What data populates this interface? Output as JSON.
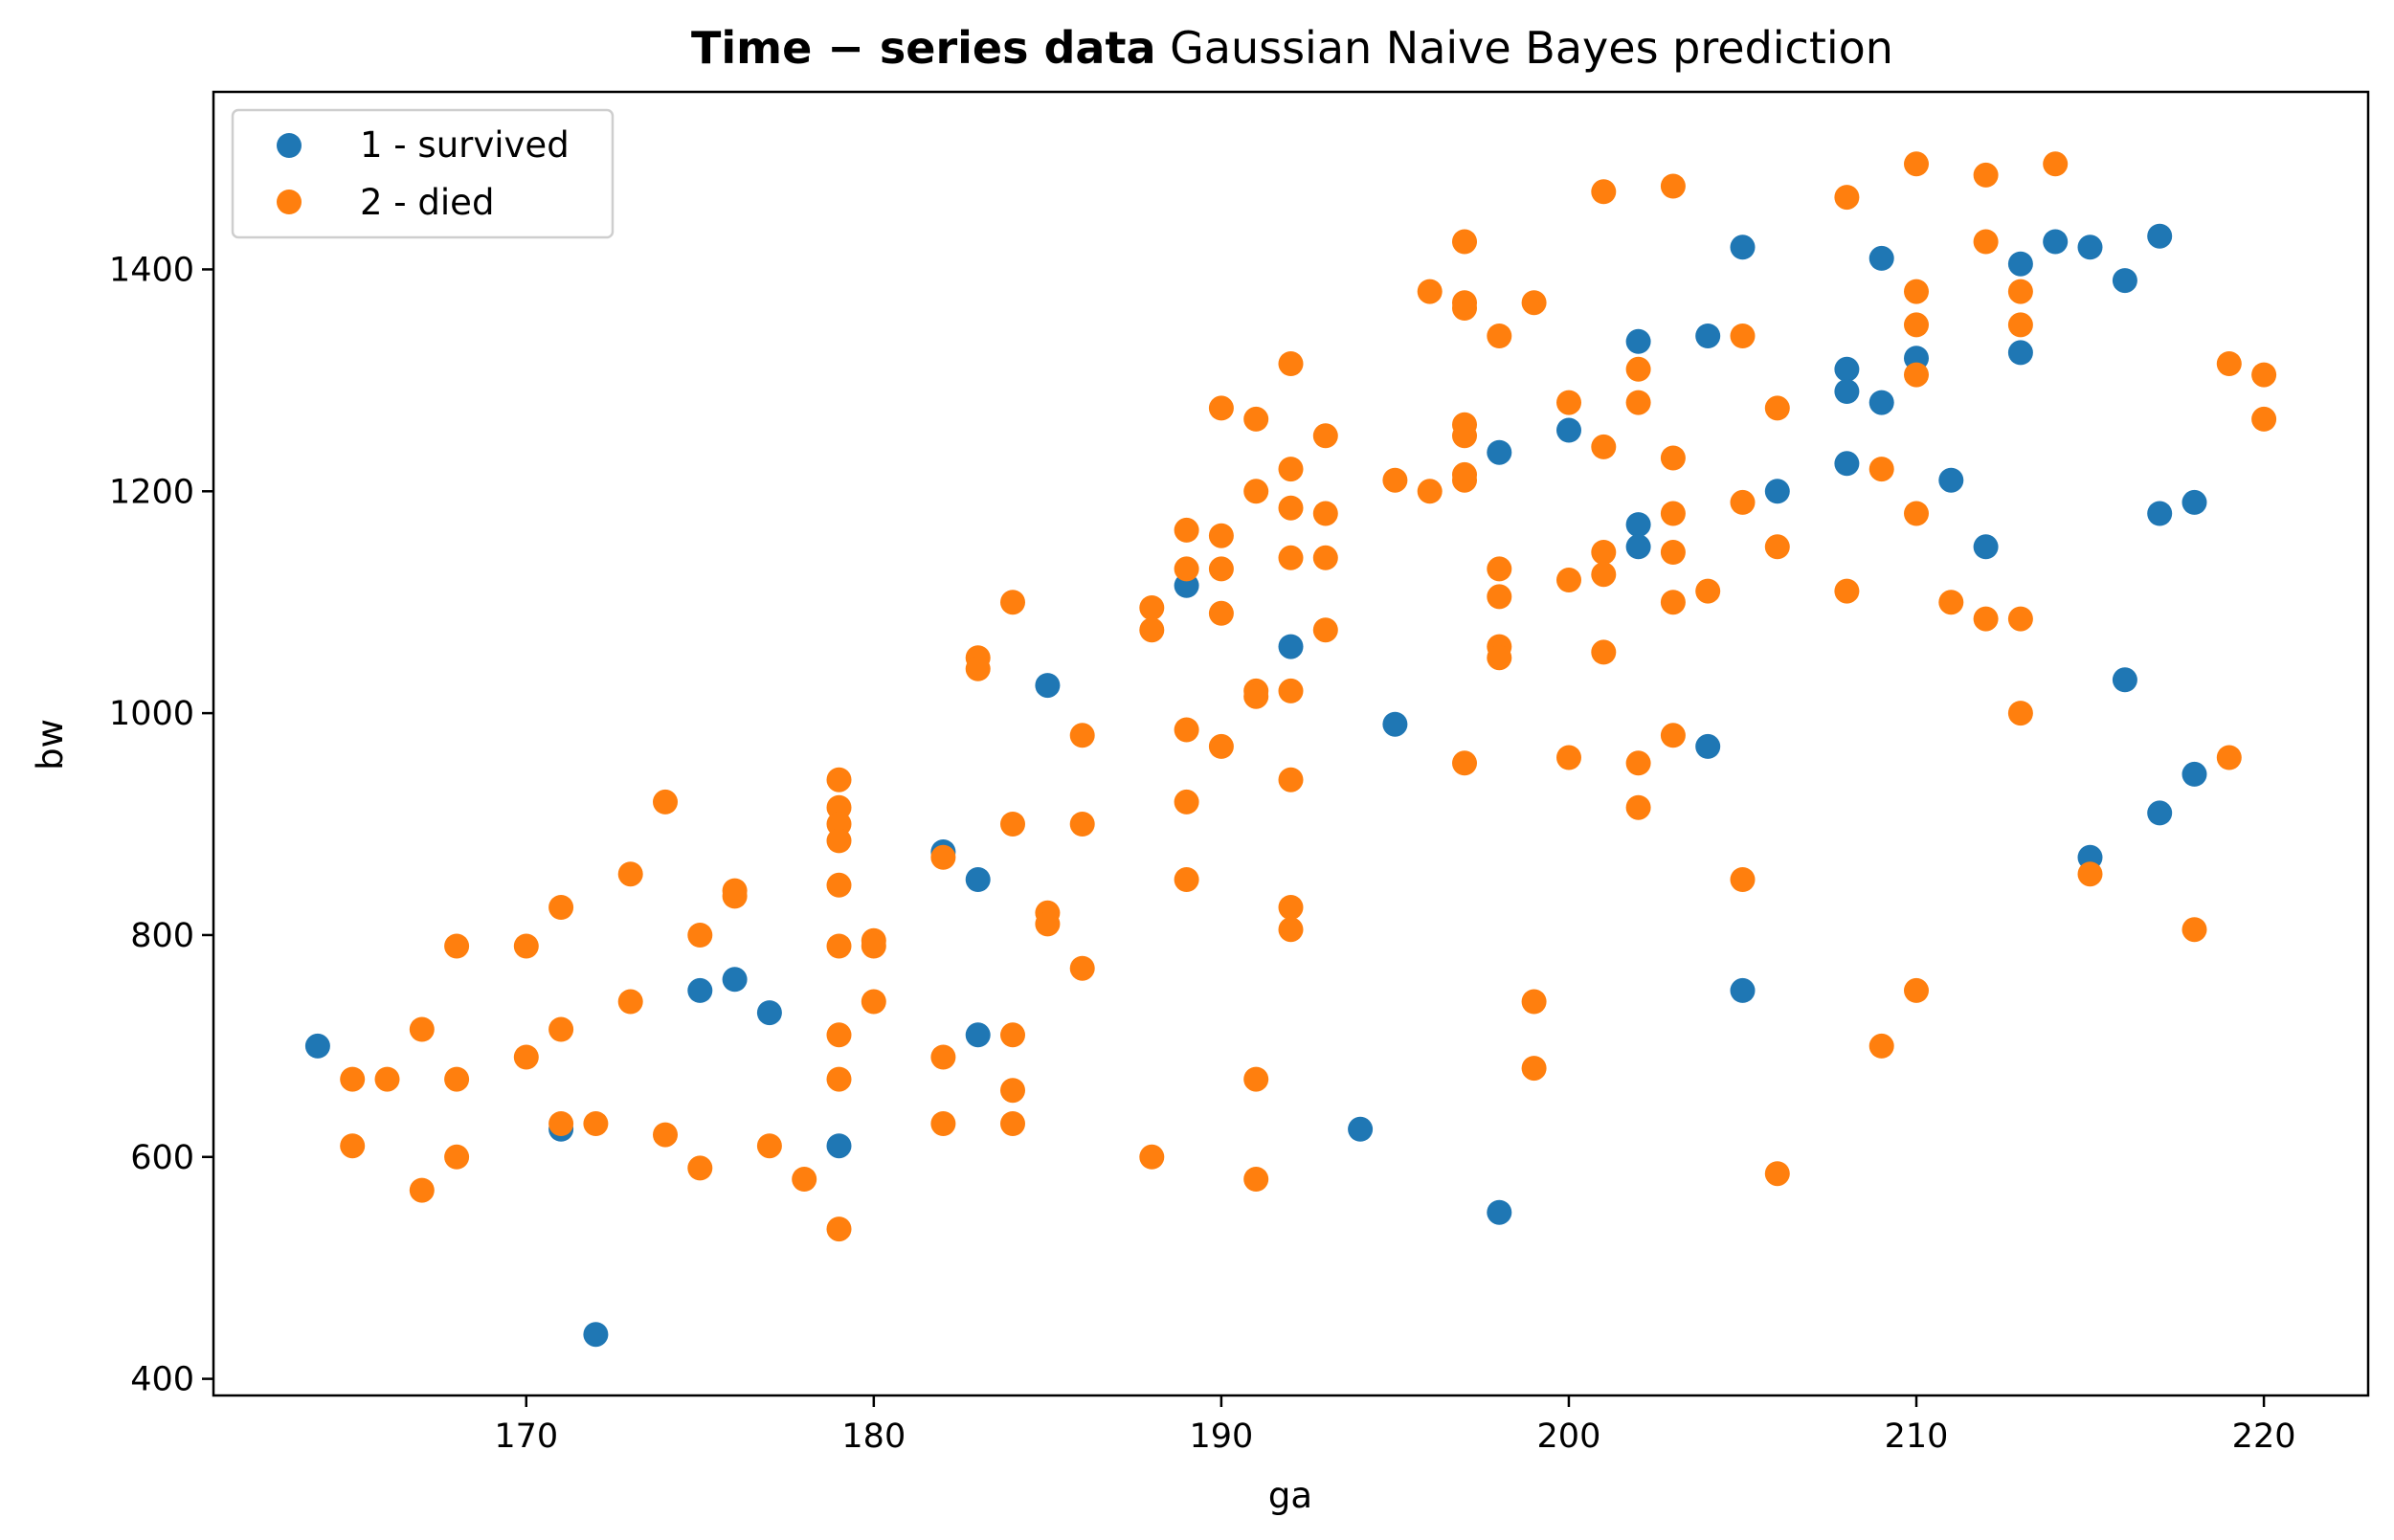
{
  "chart_data": {
    "type": "scatter",
    "title_bold": "Time − series data",
    "title_rest": " Gaussian Naive Bayes prediction",
    "xlabel": "ga",
    "ylabel": "bw",
    "xlim": [
      161,
      223
    ],
    "ylim": [
      385,
      1560
    ],
    "xticks": [
      170,
      180,
      190,
      200,
      210,
      220
    ],
    "yticks": [
      400,
      600,
      800,
      1000,
      1200,
      1400
    ],
    "grid": false,
    "legend_position": "top-left",
    "series": [
      {
        "name": "1 - survived",
        "color": "#1f77b4",
        "points": [
          [
            164,
            700
          ],
          [
            171,
            625
          ],
          [
            172,
            440
          ],
          [
            175,
            750
          ],
          [
            176,
            760
          ],
          [
            177,
            730
          ],
          [
            179,
            610
          ],
          [
            182,
            875
          ],
          [
            183,
            850
          ],
          [
            183,
            710
          ],
          [
            185,
            1025
          ],
          [
            189,
            1115
          ],
          [
            192,
            1060
          ],
          [
            194,
            625
          ],
          [
            195,
            990
          ],
          [
            198,
            1235
          ],
          [
            198,
            550
          ],
          [
            200,
            1255
          ],
          [
            202,
            1335
          ],
          [
            202,
            1170
          ],
          [
            202,
            1150
          ],
          [
            204,
            1340
          ],
          [
            204,
            970
          ],
          [
            205,
            1420
          ],
          [
            205,
            750
          ],
          [
            206,
            1200
          ],
          [
            208,
            1310
          ],
          [
            208,
            1290
          ],
          [
            208,
            1225
          ],
          [
            209,
            1410
          ],
          [
            209,
            1280
          ],
          [
            210,
            1320
          ],
          [
            211,
            1210
          ],
          [
            212,
            1150
          ],
          [
            213,
            1405
          ],
          [
            213,
            1325
          ],
          [
            214,
            1425
          ],
          [
            215,
            1420
          ],
          [
            215,
            870
          ],
          [
            216,
            1390
          ],
          [
            216,
            1030
          ],
          [
            217,
            1430
          ],
          [
            217,
            1180
          ],
          [
            217,
            910
          ],
          [
            218,
            1190
          ],
          [
            218,
            945
          ]
        ]
      },
      {
        "name": "2 - died",
        "color": "#ff7f0e",
        "points": [
          [
            165,
            670
          ],
          [
            165,
            610
          ],
          [
            166,
            670
          ],
          [
            167,
            715
          ],
          [
            167,
            570
          ],
          [
            168,
            790
          ],
          [
            168,
            670
          ],
          [
            168,
            600
          ],
          [
            170,
            790
          ],
          [
            170,
            690
          ],
          [
            171,
            825
          ],
          [
            171,
            715
          ],
          [
            171,
            630
          ],
          [
            172,
            630
          ],
          [
            173,
            855
          ],
          [
            173,
            740
          ],
          [
            174,
            920
          ],
          [
            174,
            620
          ],
          [
            175,
            800
          ],
          [
            175,
            590
          ],
          [
            176,
            840
          ],
          [
            176,
            835
          ],
          [
            177,
            610
          ],
          [
            178,
            580
          ],
          [
            179,
            940
          ],
          [
            179,
            915
          ],
          [
            179,
            900
          ],
          [
            179,
            885
          ],
          [
            179,
            845
          ],
          [
            179,
            790
          ],
          [
            179,
            710
          ],
          [
            179,
            670
          ],
          [
            179,
            535
          ],
          [
            180,
            795
          ],
          [
            180,
            790
          ],
          [
            180,
            740
          ],
          [
            182,
            870
          ],
          [
            182,
            690
          ],
          [
            182,
            630
          ],
          [
            183,
            1050
          ],
          [
            183,
            1040
          ],
          [
            184,
            1100
          ],
          [
            184,
            900
          ],
          [
            184,
            710
          ],
          [
            184,
            660
          ],
          [
            184,
            630
          ],
          [
            185,
            820
          ],
          [
            185,
            810
          ],
          [
            186,
            980
          ],
          [
            186,
            900
          ],
          [
            186,
            770
          ],
          [
            188,
            1095
          ],
          [
            188,
            1075
          ],
          [
            188,
            600
          ],
          [
            189,
            1165
          ],
          [
            189,
            1130
          ],
          [
            189,
            985
          ],
          [
            189,
            920
          ],
          [
            189,
            850
          ],
          [
            190,
            1275
          ],
          [
            190,
            1160
          ],
          [
            190,
            1130
          ],
          [
            190,
            1090
          ],
          [
            190,
            970
          ],
          [
            191,
            1265
          ],
          [
            191,
            1200
          ],
          [
            191,
            1020
          ],
          [
            191,
            1015
          ],
          [
            191,
            670
          ],
          [
            191,
            580
          ],
          [
            192,
            1315
          ],
          [
            192,
            1220
          ],
          [
            192,
            1185
          ],
          [
            192,
            1140
          ],
          [
            192,
            1020
          ],
          [
            192,
            940
          ],
          [
            192,
            825
          ],
          [
            192,
            805
          ],
          [
            193,
            1250
          ],
          [
            193,
            1180
          ],
          [
            193,
            1140
          ],
          [
            193,
            1075
          ],
          [
            195,
            1210
          ],
          [
            196,
            1380
          ],
          [
            196,
            1200
          ],
          [
            197,
            1425
          ],
          [
            197,
            1370
          ],
          [
            197,
            1365
          ],
          [
            197,
            1260
          ],
          [
            197,
            1250
          ],
          [
            197,
            1215
          ],
          [
            197,
            1210
          ],
          [
            197,
            955
          ],
          [
            198,
            1340
          ],
          [
            198,
            1130
          ],
          [
            198,
            1105
          ],
          [
            198,
            1060
          ],
          [
            198,
            1050
          ],
          [
            199,
            1370
          ],
          [
            199,
            740
          ],
          [
            199,
            680
          ],
          [
            200,
            1280
          ],
          [
            200,
            1120
          ],
          [
            200,
            960
          ],
          [
            201,
            1470
          ],
          [
            201,
            1240
          ],
          [
            201,
            1145
          ],
          [
            201,
            1125
          ],
          [
            201,
            1055
          ],
          [
            202,
            1310
          ],
          [
            202,
            1280
          ],
          [
            202,
            955
          ],
          [
            202,
            915
          ],
          [
            203,
            1475
          ],
          [
            203,
            1230
          ],
          [
            203,
            1180
          ],
          [
            203,
            1145
          ],
          [
            203,
            1100
          ],
          [
            203,
            980
          ],
          [
            204,
            1110
          ],
          [
            205,
            1340
          ],
          [
            205,
            1190
          ],
          [
            205,
            850
          ],
          [
            206,
            1275
          ],
          [
            206,
            1150
          ],
          [
            206,
            585
          ],
          [
            208,
            1465
          ],
          [
            208,
            1110
          ],
          [
            209,
            1220
          ],
          [
            209,
            700
          ],
          [
            210,
            1495
          ],
          [
            210,
            1380
          ],
          [
            210,
            1350
          ],
          [
            210,
            1305
          ],
          [
            210,
            1180
          ],
          [
            210,
            750
          ],
          [
            211,
            1100
          ],
          [
            212,
            1485
          ],
          [
            212,
            1425
          ],
          [
            212,
            1085
          ],
          [
            213,
            1380
          ],
          [
            213,
            1350
          ],
          [
            213,
            1085
          ],
          [
            213,
            1000
          ],
          [
            214,
            1495
          ],
          [
            215,
            855
          ],
          [
            218,
            805
          ],
          [
            219,
            1315
          ],
          [
            219,
            960
          ],
          [
            220,
            1305
          ],
          [
            220,
            1265
          ]
        ]
      }
    ]
  }
}
